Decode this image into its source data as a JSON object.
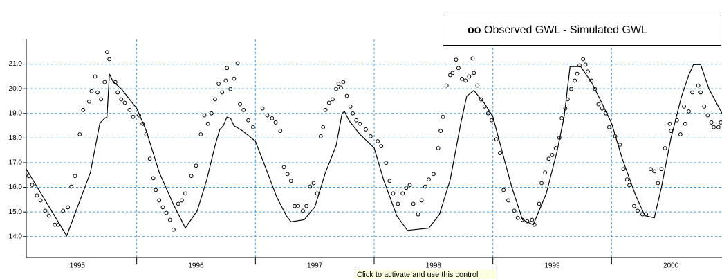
{
  "chart_data": {
    "type": "line",
    "legend": {
      "position": "top-right"
    },
    "tooltip": "Click to activate and use this control",
    "xlim": [
      1995.07,
      2000.93
    ],
    "ylim": [
      13.15,
      22.0
    ],
    "yticks": [
      {
        "value": 14,
        "label": "14.0"
      },
      {
        "value": 15,
        "label": "15.0"
      },
      {
        "value": 16,
        "label": "16.0"
      },
      {
        "value": 17,
        "label": "17.0"
      },
      {
        "value": 18,
        "label": "18.0"
      },
      {
        "value": 19,
        "label": "19.0"
      },
      {
        "value": 20,
        "label": "20.0"
      },
      {
        "value": 21,
        "label": "21.0"
      }
    ],
    "xticks": [
      {
        "value": 1995.5,
        "label": "1995"
      },
      {
        "value": 1996.5,
        "label": "1996"
      },
      {
        "value": 1997.5,
        "label": "1997"
      },
      {
        "value": 1998.5,
        "label": "1998"
      },
      {
        "value": 1999.5,
        "label": "1999"
      },
      {
        "value": 2000.5,
        "label": "2000"
      }
    ],
    "xgrid": [
      1996,
      1997,
      1998,
      1999,
      2000
    ],
    "grid": true,
    "grid_color": "#3d9be0",
    "series": [
      {
        "name": "Observed GWL",
        "marker": "oo",
        "type": "scatter",
        "color": "#000000",
        "x": [
          1995.09,
          1995.12,
          1995.16,
          1995.19,
          1995.23,
          1995.26,
          1995.31,
          1995.34,
          1995.38,
          1995.42,
          1995.45,
          1995.48,
          1995.52,
          1995.55,
          1995.6,
          1995.62,
          1995.65,
          1995.67,
          1995.7,
          1995.73,
          1995.75,
          1995.77,
          1995.82,
          1995.84,
          1995.87,
          1995.9,
          1995.94,
          1995.97,
          1996.02,
          1996.05,
          1996.08,
          1996.11,
          1996.14,
          1996.16,
          1996.19,
          1996.22,
          1996.25,
          1996.28,
          1996.31,
          1996.35,
          1996.38,
          1996.41,
          1996.46,
          1996.5,
          1996.54,
          1996.57,
          1996.6,
          1996.63,
          1996.66,
          1996.69,
          1996.72,
          1996.75,
          1996.76,
          1996.79,
          1996.82,
          1996.85,
          1996.87,
          1996.9,
          1996.94,
          1996.98,
          1997.06,
          1997.1,
          1997.14,
          1997.17,
          1997.21,
          1997.24,
          1997.27,
          1997.3,
          1997.33,
          1997.36,
          1997.4,
          1997.43,
          1997.46,
          1997.49,
          1997.52,
          1997.55,
          1997.57,
          1997.59,
          1997.62,
          1997.65,
          1997.68,
          1997.7,
          1997.72,
          1997.74,
          1997.77,
          1997.8,
          1997.82,
          1997.85,
          1997.88,
          1997.93,
          1997.97,
          1998.03,
          1998.06,
          1998.1,
          1998.13,
          1998.16,
          1998.2,
          1998.24,
          1998.27,
          1998.3,
          1998.33,
          1998.37,
          1998.4,
          1998.43,
          1998.46,
          1998.5,
          1998.54,
          1998.56,
          1998.58,
          1998.61,
          1998.64,
          1998.66,
          1998.69,
          1998.71,
          1998.74,
          1998.77,
          1998.8,
          1998.83,
          1998.84,
          1998.87,
          1998.9,
          1998.93,
          1998.96,
          1998.99,
          1999.03,
          1999.06,
          1999.09,
          1999.13,
          1999.18,
          1999.21,
          1999.25,
          1999.29,
          1999.33,
          1999.35,
          1999.39,
          1999.41,
          1999.44,
          1999.47,
          1999.5,
          1999.53,
          1999.56,
          1999.58,
          1999.61,
          1999.63,
          1999.66,
          1999.69,
          1999.71,
          1999.73,
          1999.76,
          1999.78,
          1999.8,
          1999.83,
          1999.86,
          1999.89,
          1999.92,
          1999.95,
          1999.98,
          2000.03,
          2000.07,
          2000.1,
          2000.13,
          2000.15,
          2000.19,
          2000.22,
          2000.26,
          2000.29,
          2000.33,
          2000.36,
          2000.39,
          2000.42,
          2000.45,
          2000.49,
          2000.5,
          2000.55,
          2000.58,
          2000.61,
          2000.62,
          2000.65,
          2000.68,
          2000.73,
          2000.75,
          2000.78,
          2000.81,
          2000.84,
          2000.86,
          2000.9,
          2000.92
        ],
        "values": [
          16.46,
          16.1,
          15.67,
          15.47,
          15.05,
          14.85,
          14.48,
          14.48,
          15.05,
          15.19,
          16.03,
          16.46,
          18.15,
          19.14,
          19.48,
          19.9,
          20.5,
          19.85,
          19.57,
          20.27,
          21.49,
          21.2,
          20.27,
          19.85,
          19.57,
          19.43,
          19.14,
          18.86,
          18.92,
          18.58,
          18.15,
          17.16,
          16.37,
          15.89,
          15.47,
          15.19,
          14.96,
          14.68,
          14.28,
          15.33,
          15.47,
          15.75,
          16.46,
          16.88,
          18.15,
          18.92,
          18.58,
          19.0,
          19.57,
          20.2,
          19.85,
          20.33,
          20.84,
          19.99,
          20.41,
          21.03,
          19.37,
          19.14,
          18.72,
          18.44,
          19.2,
          18.92,
          18.8,
          18.63,
          18.29,
          16.82,
          16.54,
          16.26,
          15.24,
          15.24,
          15.05,
          15.24,
          16.03,
          16.17,
          15.75,
          18.07,
          18.44,
          19.14,
          19.43,
          19.57,
          19.99,
          20.2,
          20.05,
          20.27,
          19.71,
          19.28,
          19.0,
          18.72,
          18.58,
          18.35,
          18.07,
          17.87,
          17.67,
          16.99,
          16.26,
          15.75,
          15.33,
          15.75,
          15.98,
          16.09,
          15.33,
          14.9,
          15.47,
          16.03,
          16.32,
          16.54,
          17.59,
          18.29,
          18.86,
          20.13,
          20.55,
          20.64,
          21.18,
          20.84,
          20.41,
          20.33,
          20.5,
          21.23,
          20.64,
          20.13,
          19.57,
          19.28,
          19.0,
          18.72,
          17.95,
          17.39,
          15.89,
          15.47,
          15.05,
          14.76,
          14.68,
          14.62,
          14.68,
          14.48,
          15.33,
          16.17,
          16.6,
          17.16,
          17.31,
          17.59,
          18.01,
          18.8,
          19.2,
          19.57,
          19.99,
          20.33,
          20.61,
          20.95,
          21.2,
          20.98,
          20.7,
          20.33,
          19.99,
          19.37,
          19.2,
          19.0,
          18.44,
          18.07,
          17.73,
          16.74,
          16.32,
          16.09,
          15.24,
          15.05,
          14.9,
          14.9,
          16.74,
          16.65,
          16.17,
          16.74,
          17.59,
          18.58,
          18.29,
          18.72,
          18.15,
          19.28,
          18.58,
          19.08,
          19.85,
          20.13,
          19.85,
          19.28,
          18.92,
          18.63,
          18.44,
          18.44,
          18.63
        ]
      },
      {
        "name": "Simulated GWL",
        "marker": "-",
        "type": "line",
        "color": "#000000",
        "x": [
          1995.07,
          1995.41,
          1995.61,
          1995.69,
          1995.73,
          1995.75,
          1995.77,
          1995.8,
          1995.87,
          1996.0,
          1996.08,
          1996.19,
          1996.31,
          1996.41,
          1996.51,
          1996.59,
          1996.66,
          1996.7,
          1996.73,
          1996.76,
          1996.79,
          1996.82,
          1996.89,
          1997.0,
          1997.09,
          1997.18,
          1997.26,
          1997.3,
          1997.41,
          1997.5,
          1997.59,
          1997.68,
          1997.73,
          1997.75,
          1997.79,
          1997.88,
          1998.0,
          1998.08,
          1998.19,
          1998.28,
          1998.46,
          1998.55,
          1998.64,
          1998.73,
          1998.78,
          1998.84,
          1998.93,
          1999.0,
          1999.07,
          1999.16,
          1999.25,
          1999.34,
          1999.45,
          1999.54,
          1999.6,
          1999.65,
          1999.74,
          1999.83,
          1999.92,
          2000.0,
          2000.09,
          2000.2,
          2000.28,
          2000.36,
          2000.42,
          2000.5,
          2000.59,
          2000.65,
          2000.69,
          2000.75,
          2000.82,
          2000.93
        ],
        "values": [
          16.74,
          14.03,
          16.6,
          18.6,
          18.8,
          18.85,
          20.6,
          20.3,
          20.0,
          19.2,
          18.3,
          16.6,
          15.3,
          14.35,
          15.05,
          16.3,
          17.7,
          18.35,
          18.5,
          18.85,
          18.8,
          18.5,
          18.3,
          17.87,
          16.74,
          15.6,
          14.85,
          14.6,
          14.68,
          15.2,
          16.6,
          17.7,
          19.0,
          19.08,
          18.7,
          18.15,
          17.6,
          16.3,
          14.85,
          14.25,
          14.34,
          14.9,
          16.3,
          18.6,
          19.7,
          19.93,
          19.4,
          18.86,
          17.6,
          16.0,
          14.68,
          14.48,
          15.75,
          17.45,
          18.86,
          20.9,
          20.9,
          20.27,
          19.4,
          18.6,
          17.16,
          15.7,
          14.85,
          14.76,
          16.0,
          18.0,
          19.7,
          20.55,
          20.98,
          20.98,
          20.0,
          19.0
        ]
      }
    ]
  }
}
